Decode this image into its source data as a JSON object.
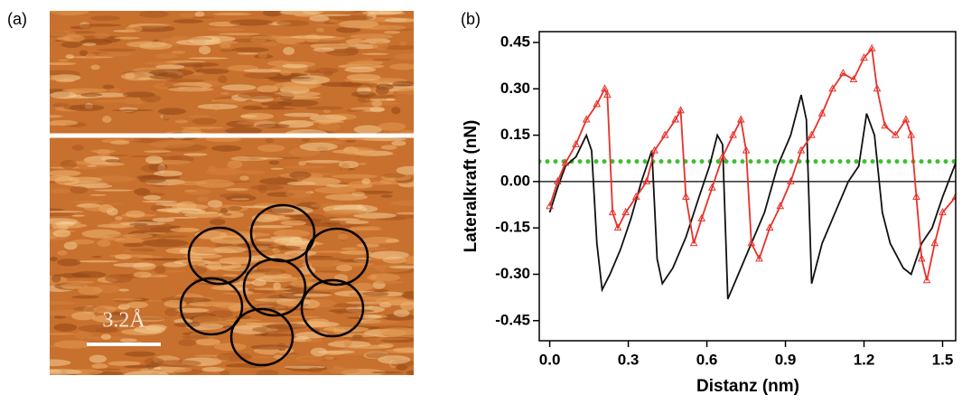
{
  "panel_a": {
    "label": "(a)",
    "scale_bar": "3.2Å"
  },
  "chart_data": {
    "type": "line",
    "label": "(b)",
    "x_label": "Distanz (nm)",
    "y_label": "Lateralkraft (nN)",
    "xlim": [
      -0.04,
      1.55
    ],
    "ylim": [
      -0.515,
      0.485
    ],
    "xticks": [
      {
        "value": 0,
        "label": "0.0"
      },
      0.3,
      0.6,
      0.9,
      1.2,
      1.5
    ],
    "yticks": [
      {
        "value": -0.45,
        "label": "-0.45"
      },
      {
        "value": -0.3,
        "label": "-0.30"
      },
      -0.15,
      {
        "value": 0,
        "label": "0.00"
      },
      0.15,
      {
        "value": 0.3,
        "label": "0.30"
      },
      0.45
    ],
    "reference_lines": [
      {
        "value": 0,
        "color": "#000000",
        "style": "solid"
      },
      {
        "value": 0.065,
        "color": "#3fbf2f",
        "style": "dotted"
      }
    ],
    "series": [
      {
        "color": "#111111",
        "marker": "none",
        "x": [
          0.0,
          0.03,
          0.06,
          0.1,
          0.14,
          0.16,
          0.18,
          0.2,
          0.23,
          0.27,
          0.31,
          0.35,
          0.37,
          0.39,
          0.41,
          0.43,
          0.47,
          0.52,
          0.57,
          0.61,
          0.64,
          0.66,
          0.68,
          0.72,
          0.77,
          0.82,
          0.87,
          0.92,
          0.96,
          0.98,
          1.0,
          1.04,
          1.09,
          1.14,
          1.18,
          1.21,
          1.24,
          1.27,
          1.3,
          1.35,
          1.38,
          1.42,
          1.46,
          1.5,
          1.55
        ],
        "values": [
          -0.1,
          -0.02,
          0.05,
          0.08,
          0.15,
          0.1,
          -0.2,
          -0.35,
          -0.3,
          -0.22,
          -0.12,
          0.0,
          0.05,
          0.1,
          -0.25,
          -0.33,
          -0.28,
          -0.18,
          -0.05,
          0.05,
          0.15,
          0.12,
          -0.38,
          -0.3,
          -0.2,
          -0.1,
          0.05,
          0.15,
          0.28,
          0.2,
          -0.33,
          -0.2,
          -0.1,
          0.0,
          0.05,
          0.22,
          0.15,
          -0.1,
          -0.2,
          -0.28,
          -0.3,
          -0.2,
          -0.15,
          -0.05,
          0.06
        ]
      },
      {
        "color": "#e8302a",
        "marker": "triangle",
        "x": [
          0.0,
          0.03,
          0.06,
          0.1,
          0.14,
          0.18,
          0.21,
          0.22,
          0.24,
          0.26,
          0.29,
          0.33,
          0.37,
          0.4,
          0.44,
          0.48,
          0.5,
          0.52,
          0.55,
          0.58,
          0.62,
          0.66,
          0.7,
          0.73,
          0.75,
          0.77,
          0.8,
          0.84,
          0.88,
          0.92,
          0.96,
          1.0,
          1.04,
          1.08,
          1.12,
          1.16,
          1.2,
          1.23,
          1.25,
          1.28,
          1.32,
          1.36,
          1.38,
          1.4,
          1.42,
          1.44,
          1.47,
          1.5,
          1.55
        ],
        "values": [
          -0.08,
          0.0,
          0.06,
          0.12,
          0.2,
          0.25,
          0.3,
          0.28,
          -0.1,
          -0.15,
          -0.1,
          -0.05,
          0.0,
          0.1,
          0.15,
          0.2,
          0.23,
          -0.05,
          -0.2,
          -0.12,
          -0.02,
          0.08,
          0.15,
          0.2,
          0.1,
          -0.2,
          -0.25,
          -0.15,
          -0.08,
          0.0,
          0.1,
          0.15,
          0.22,
          0.3,
          0.35,
          0.33,
          0.4,
          0.43,
          0.3,
          0.18,
          0.15,
          0.2,
          0.15,
          -0.05,
          -0.25,
          -0.32,
          -0.2,
          -0.1,
          -0.05
        ]
      }
    ]
  }
}
